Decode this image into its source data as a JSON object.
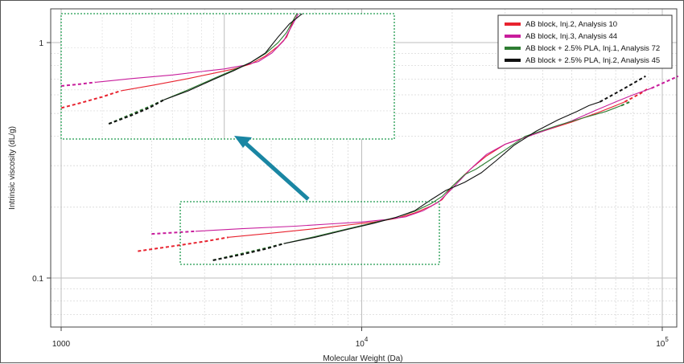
{
  "chart_data": {
    "type": "line",
    "title": "",
    "xlabel": "Molecular Weight (Da)",
    "ylabel": "Intrinsic viscosity (dL/g)",
    "xscale": "log",
    "yscale": "log",
    "xlim": [
      1000,
      115000
    ],
    "ylim": [
      0.065,
      1.4
    ],
    "grid": true,
    "legend_position": "top-right",
    "x_tick_labels": [
      {
        "value": 1000,
        "base": "1000",
        "exp": ""
      },
      {
        "value": 10000,
        "base": "10",
        "exp": "4"
      },
      {
        "value": 100000,
        "base": "10",
        "exp": "5"
      }
    ],
    "y_tick_labels": [
      {
        "value": 1,
        "label": "1"
      },
      {
        "value": 0.1,
        "label": "0.1"
      }
    ],
    "series": [
      {
        "name": "AB block, Inj.2, Analysis 10",
        "color": "#e8232f",
        "solid": [
          [
            3600,
            0.149
          ],
          [
            5000,
            0.155
          ],
          [
            7000,
            0.162
          ],
          [
            9000,
            0.168
          ],
          [
            11000,
            0.173
          ],
          [
            13000,
            0.179
          ],
          [
            15000,
            0.189
          ],
          [
            17000,
            0.202
          ],
          [
            18500,
            0.215
          ],
          [
            20000,
            0.245
          ],
          [
            23000,
            0.29
          ],
          [
            26000,
            0.33
          ],
          [
            30000,
            0.37
          ],
          [
            40000,
            0.42
          ],
          [
            50000,
            0.46
          ],
          [
            60000,
            0.5
          ],
          [
            70000,
            0.54
          ],
          [
            75000,
            0.56
          ]
        ],
        "dashed_low": [
          [
            1800,
            0.13
          ],
          [
            2400,
            0.137
          ],
          [
            3000,
            0.143
          ],
          [
            3600,
            0.149
          ]
        ],
        "dashed_high": [
          [
            75000,
            0.56
          ],
          [
            85000,
            0.61
          ],
          [
            90000,
            0.64
          ]
        ]
      },
      {
        "name": "AB block, Inj.3, Analysis 44",
        "color": "#c81d9c",
        "solid": [
          [
            2800,
            0.158
          ],
          [
            4000,
            0.162
          ],
          [
            6000,
            0.166
          ],
          [
            8000,
            0.17
          ],
          [
            10000,
            0.173
          ],
          [
            12000,
            0.177
          ],
          [
            14000,
            0.182
          ],
          [
            16000,
            0.193
          ],
          [
            18000,
            0.21
          ],
          [
            20000,
            0.24
          ],
          [
            23000,
            0.29
          ],
          [
            26000,
            0.335
          ],
          [
            30000,
            0.37
          ],
          [
            40000,
            0.42
          ],
          [
            50000,
            0.465
          ],
          [
            60000,
            0.515
          ],
          [
            70000,
            0.56
          ],
          [
            80000,
            0.6
          ],
          [
            92000,
            0.64
          ]
        ],
        "dashed_low": [
          [
            2000,
            0.154
          ],
          [
            2400,
            0.156
          ],
          [
            2800,
            0.158
          ]
        ],
        "dashed_high": [
          [
            92000,
            0.64
          ],
          [
            105000,
            0.69
          ],
          [
            113000,
            0.72
          ]
        ]
      },
      {
        "name": "AB block + 2.5% PLA, Inj.1, Analysis 72",
        "color": "#2e7d32",
        "solid": [
          [
            5500,
            0.14
          ],
          [
            7000,
            0.15
          ],
          [
            9000,
            0.162
          ],
          [
            11000,
            0.172
          ],
          [
            13000,
            0.181
          ],
          [
            15000,
            0.192
          ],
          [
            17000,
            0.207
          ],
          [
            18500,
            0.222
          ],
          [
            20000,
            0.245
          ],
          [
            22000,
            0.275
          ],
          [
            24000,
            0.29
          ],
          [
            27000,
            0.32
          ],
          [
            30000,
            0.35
          ],
          [
            35000,
            0.4
          ],
          [
            45000,
            0.445
          ],
          [
            55000,
            0.48
          ],
          [
            65000,
            0.51
          ],
          [
            73000,
            0.54
          ]
        ],
        "dashed_low": [
          [
            3200,
            0.119
          ],
          [
            4000,
            0.127
          ],
          [
            4800,
            0.134
          ],
          [
            5500,
            0.14
          ]
        ],
        "dashed_high": [
          [
            73000,
            0.54
          ],
          [
            78000,
            0.56
          ]
        ]
      },
      {
        "name": "AB block + 2.5% PLA, Inj.2, Analysis 45",
        "color": "#111111",
        "solid": [
          [
            5500,
            0.14
          ],
          [
            7000,
            0.149
          ],
          [
            9000,
            0.161
          ],
          [
            11000,
            0.171
          ],
          [
            13000,
            0.181
          ],
          [
            15000,
            0.193
          ],
          [
            17000,
            0.215
          ],
          [
            19000,
            0.235
          ],
          [
            22000,
            0.255
          ],
          [
            25000,
            0.28
          ],
          [
            28000,
            0.315
          ],
          [
            32000,
            0.365
          ],
          [
            38000,
            0.42
          ],
          [
            45000,
            0.47
          ],
          [
            52000,
            0.51
          ],
          [
            57000,
            0.54
          ],
          [
            62000,
            0.56
          ]
        ],
        "dashed_low": [
          [
            3200,
            0.119
          ],
          [
            4000,
            0.126
          ],
          [
            4800,
            0.133
          ],
          [
            5500,
            0.14
          ]
        ],
        "dashed_high": [
          [
            62000,
            0.56
          ],
          [
            75000,
            0.64
          ],
          [
            88000,
            0.72
          ]
        ]
      }
    ]
  }
}
